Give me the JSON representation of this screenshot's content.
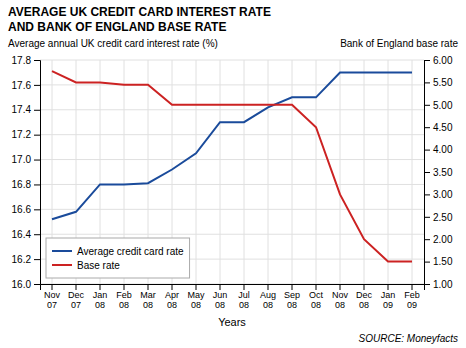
{
  "chart_data": {
    "type": "line",
    "title": "AVERAGE UK CREDIT CARD INTEREST RATE",
    "subtitle": "AND BANK OF ENGLAND BASE RATE",
    "ylabel": "Average annual UK credit card interest rate (%)",
    "y2label": "Bank of England base rate",
    "xlabel": "Years",
    "source": "SOURCE: Moneyfacts",
    "categories": [
      "Nov\n07",
      "Dec\n07",
      "Jan\n08",
      "Feb\n08",
      "Mar\n08",
      "Apr\n08",
      "May\n08",
      "Jun\n08",
      "Jul\n08",
      "Aug\n08",
      "Sep\n08",
      "Oct\n08",
      "Nov\n08",
      "Dec\n08",
      "Jan\n09",
      "Feb\n09"
    ],
    "series": [
      {
        "name": "Average credit card rate",
        "color": "#1a4b9b",
        "values": [
          16.52,
          16.58,
          16.8,
          16.8,
          16.81,
          16.92,
          17.05,
          17.3,
          17.3,
          17.42,
          17.5,
          17.5,
          17.7,
          17.7,
          17.7,
          17.7
        ]
      },
      {
        "name": "Base rate",
        "color": "#cc2222",
        "axis": "y2",
        "values": [
          5.75,
          5.5,
          5.5,
          5.45,
          5.45,
          5.0,
          5.0,
          5.0,
          5.0,
          5.0,
          5.0,
          4.5,
          3.0,
          2.0,
          1.5,
          1.5
        ]
      }
    ],
    "ylim": [
      16.0,
      17.8
    ],
    "yticks": [
      {
        "value": 16.0,
        "label": "16.0"
      },
      16.2,
      16.4,
      16.6,
      16.8,
      {
        "value": 17.0,
        "label": "17.0"
      },
      17.2,
      17.4,
      17.6,
      17.8
    ],
    "y2lim": [
      1.0,
      6.0
    ],
    "y2ticks": [
      {
        "value": 1.0,
        "label": "1.00"
      },
      {
        "value": 1.5,
        "label": "1.50"
      },
      {
        "value": 2.0,
        "label": "2.00"
      },
      {
        "value": 2.5,
        "label": "2.50"
      },
      {
        "value": 3.0,
        "label": "3.00"
      },
      {
        "value": 3.5,
        "label": "3.50"
      },
      {
        "value": 4.0,
        "label": "4.00"
      },
      {
        "value": 4.5,
        "label": "4.50"
      },
      {
        "value": 5.0,
        "label": "5.00"
      },
      {
        "value": 5.5,
        "label": "5.50"
      },
      {
        "value": 6.0,
        "label": "6.00"
      }
    ],
    "grid": true,
    "legend": "lower left"
  }
}
